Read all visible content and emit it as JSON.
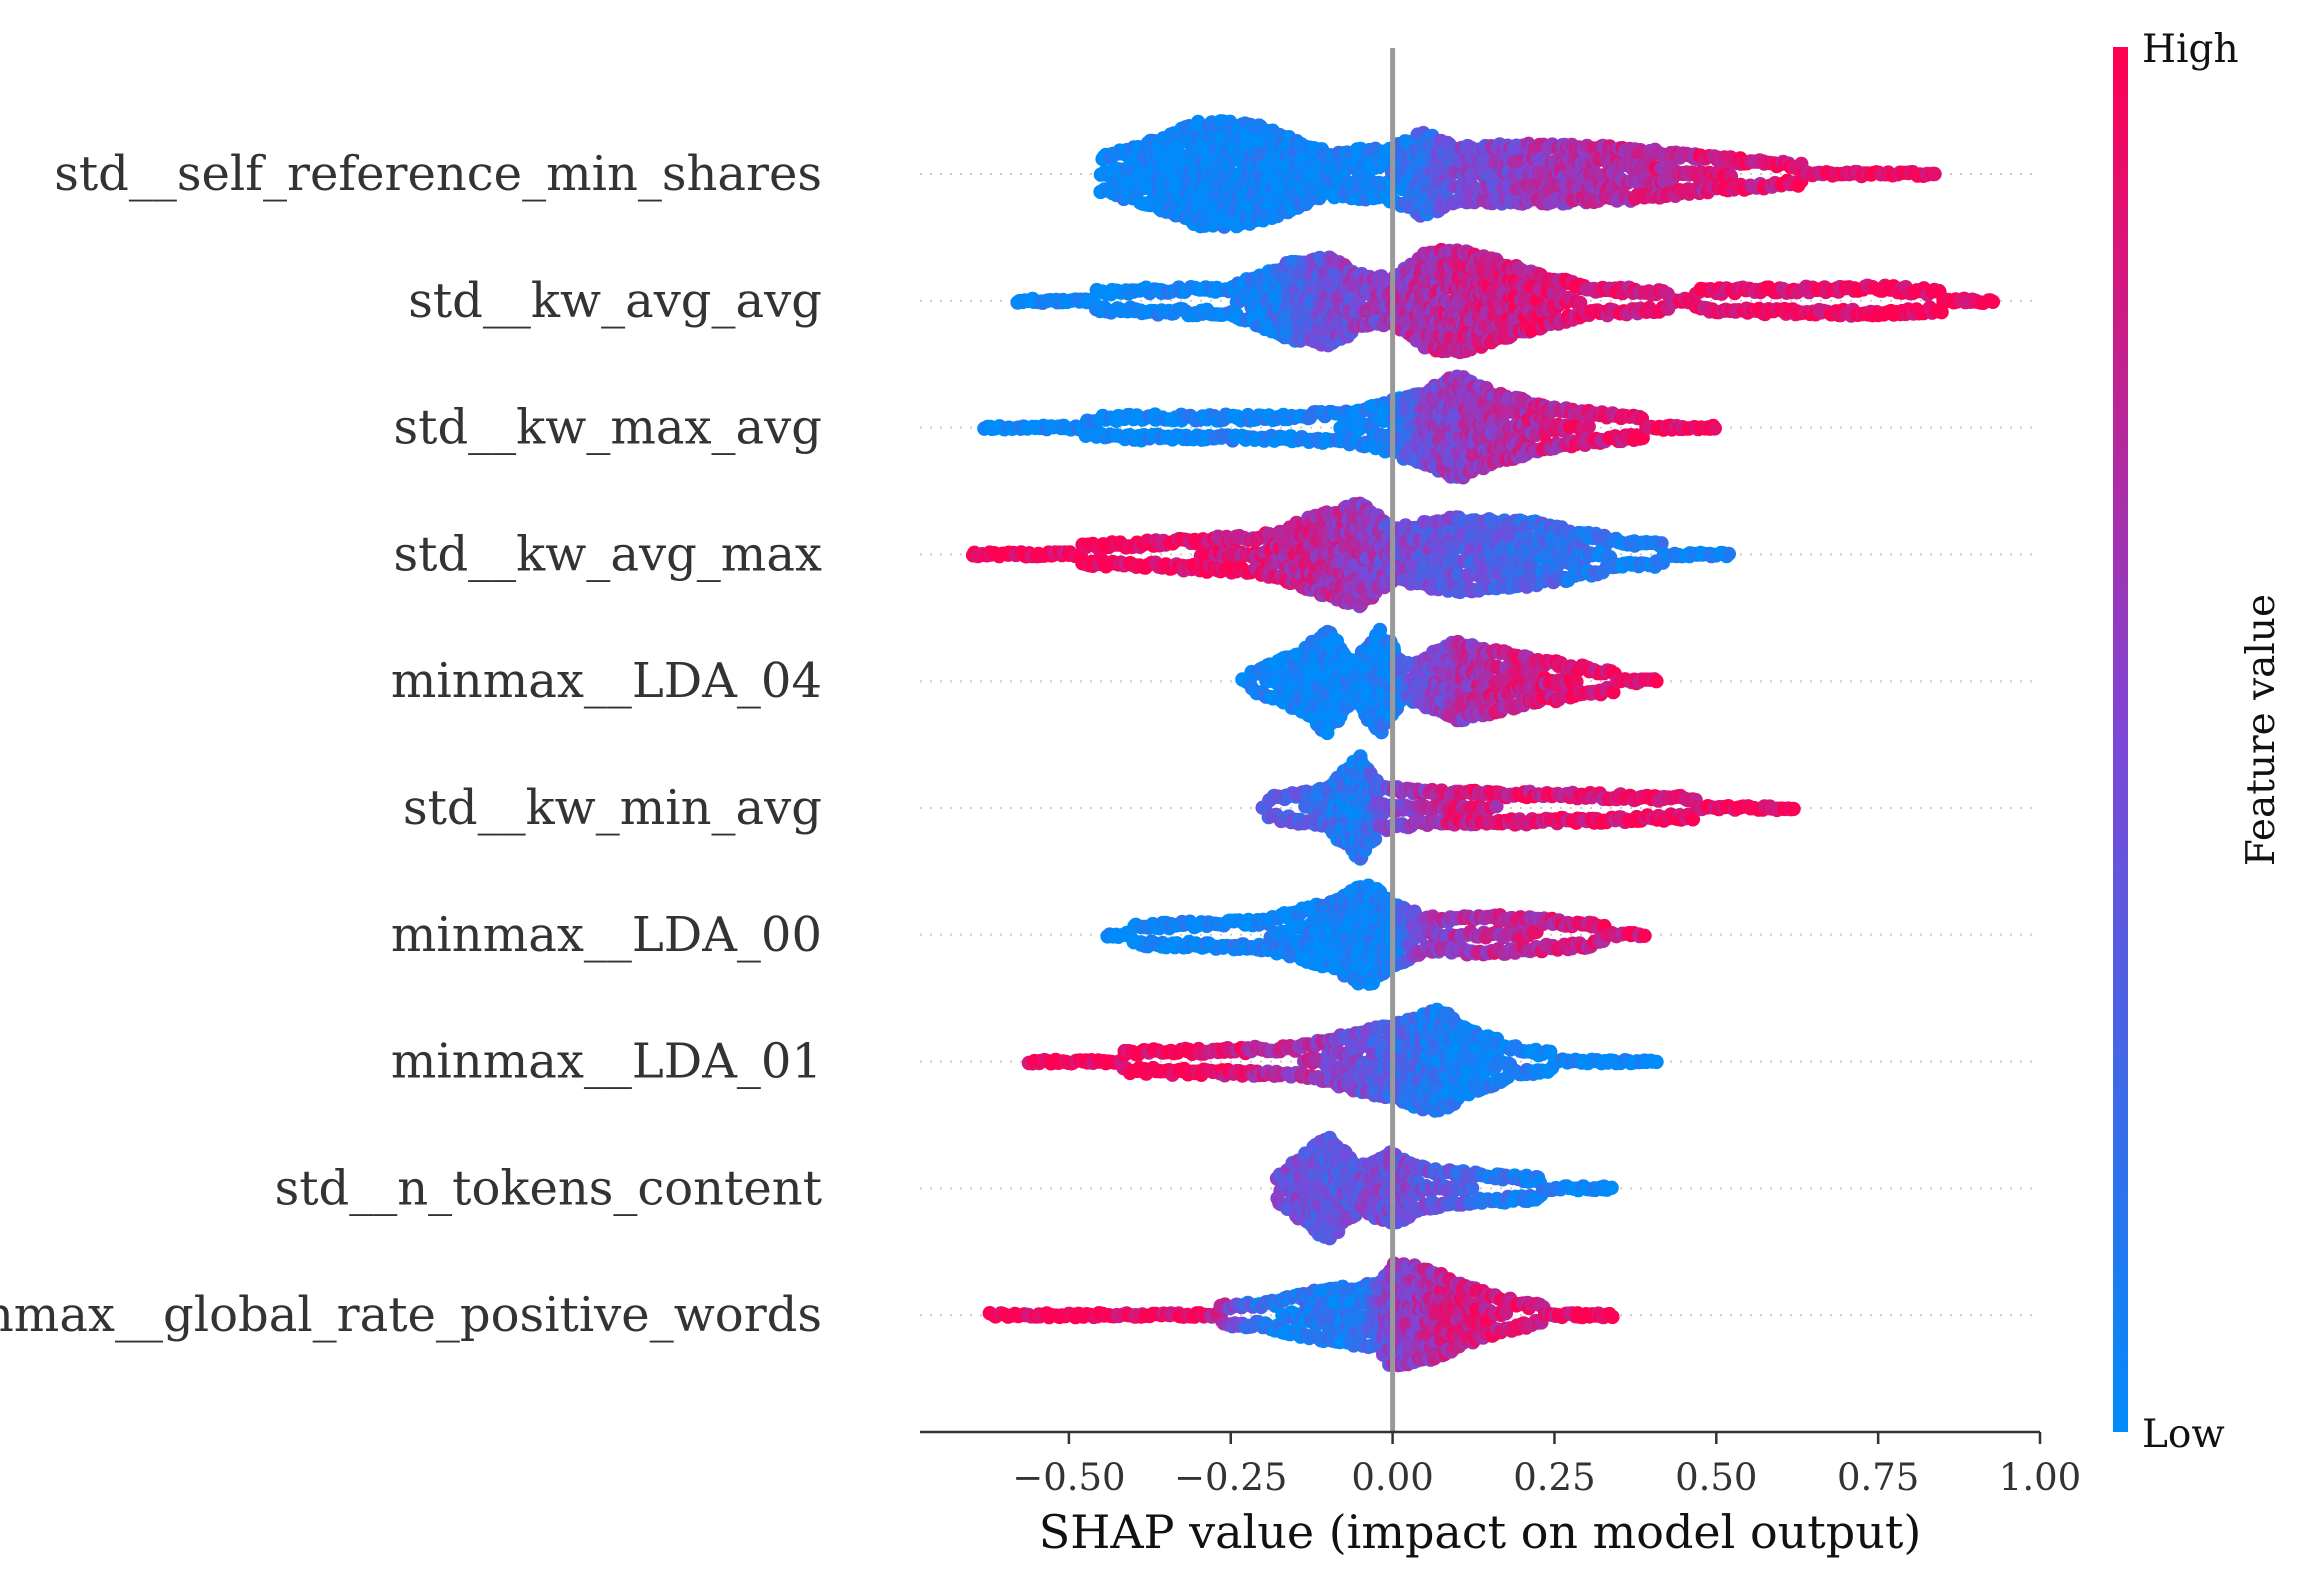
{
  "chart_data": {
    "type": "scatter",
    "subtype": "beeswarm",
    "title": "",
    "xlabel": "SHAP value (impact on model output)",
    "xlim": [
      -0.73,
      1.0
    ],
    "xticks": [
      -0.5,
      -0.25,
      0.0,
      0.25,
      0.5,
      0.75,
      1.0
    ],
    "xtick_labels": [
      "−0.50",
      "−0.25",
      "0.00",
      "0.25",
      "0.50",
      "0.75",
      "1.00"
    ],
    "zero_line": 0.0,
    "grid": false,
    "colorbar": {
      "label": "Feature value",
      "high_label": "High",
      "low_label": "Low",
      "low_color": "#008bfb",
      "high_color": "#ff0052"
    },
    "features": [
      {
        "name": "std__self_reference_min_shares",
        "label": "std__self_reference_min_shares",
        "range": [
          -0.45,
          0.84
        ],
        "density": [
          [
            -0.45,
            0.3
          ],
          [
            -0.35,
            0.7
          ],
          [
            -0.3,
            1.0
          ],
          [
            -0.25,
            1.0
          ],
          [
            -0.2,
            0.9
          ],
          [
            -0.1,
            0.4
          ],
          [
            0.0,
            0.5
          ],
          [
            0.05,
            0.8
          ],
          [
            0.1,
            0.5
          ],
          [
            0.2,
            0.55
          ],
          [
            0.35,
            0.5
          ],
          [
            0.5,
            0.3
          ],
          [
            0.65,
            0.15
          ],
          [
            0.84,
            0.05
          ]
        ],
        "color_profile": [
          [
            -0.45,
            0.0
          ],
          [
            0.0,
            0.05
          ],
          [
            0.1,
            0.45
          ],
          [
            0.3,
            0.7
          ],
          [
            0.5,
            0.85
          ],
          [
            0.84,
            1.0
          ]
        ]
      },
      {
        "name": "std__kw_avg_avg",
        "label": "std__kw_avg_avg",
        "range": [
          -0.58,
          0.93
        ],
        "density": [
          [
            -0.58,
            0.1
          ],
          [
            -0.4,
            0.2
          ],
          [
            -0.25,
            0.25
          ],
          [
            -0.15,
            0.75
          ],
          [
            -0.1,
            0.85
          ],
          [
            -0.05,
            0.5
          ],
          [
            0.0,
            0.4
          ],
          [
            0.05,
            0.9
          ],
          [
            0.1,
            1.0
          ],
          [
            0.2,
            0.6
          ],
          [
            0.3,
            0.25
          ],
          [
            0.45,
            0.15
          ],
          [
            0.5,
            0.2
          ],
          [
            0.75,
            0.25
          ],
          [
            0.93,
            0.1
          ]
        ],
        "color_profile": [
          [
            -0.58,
            0.0
          ],
          [
            -0.2,
            0.05
          ],
          [
            -0.1,
            0.45
          ],
          [
            0.05,
            0.7
          ],
          [
            0.2,
            0.85
          ],
          [
            0.93,
            1.0
          ]
        ]
      },
      {
        "name": "std__kw_max_avg",
        "label": "std__kw_max_avg",
        "range": [
          -0.63,
          0.5
        ],
        "density": [
          [
            -0.63,
            0.1
          ],
          [
            -0.4,
            0.2
          ],
          [
            -0.2,
            0.2
          ],
          [
            -0.05,
            0.3
          ],
          [
            0.05,
            0.7
          ],
          [
            0.1,
            1.0
          ],
          [
            0.15,
            0.7
          ],
          [
            0.25,
            0.35
          ],
          [
            0.4,
            0.15
          ],
          [
            0.5,
            0.05
          ]
        ],
        "color_profile": [
          [
            -0.63,
            0.0
          ],
          [
            0.0,
            0.05
          ],
          [
            0.05,
            0.5
          ],
          [
            0.15,
            0.65
          ],
          [
            0.3,
            0.85
          ],
          [
            0.5,
            1.0
          ]
        ]
      },
      {
        "name": "std__kw_avg_max",
        "label": "std__kw_avg_max",
        "range": [
          -0.65,
          0.52
        ],
        "density": [
          [
            -0.65,
            0.1
          ],
          [
            -0.4,
            0.2
          ],
          [
            -0.2,
            0.35
          ],
          [
            -0.1,
            0.8
          ],
          [
            -0.05,
            1.0
          ],
          [
            0.0,
            0.5
          ],
          [
            0.1,
            0.7
          ],
          [
            0.22,
            0.6
          ],
          [
            0.35,
            0.25
          ],
          [
            0.52,
            0.05
          ]
        ],
        "color_profile": [
          [
            -0.65,
            1.0
          ],
          [
            -0.3,
            0.95
          ],
          [
            -0.1,
            0.7
          ],
          [
            0.0,
            0.5
          ],
          [
            0.15,
            0.35
          ],
          [
            0.3,
            0.15
          ],
          [
            0.52,
            0.0
          ]
        ]
      },
      {
        "name": "minmax__LDA_04",
        "label": "minmax__LDA_04",
        "range": [
          -0.23,
          0.41
        ],
        "density": [
          [
            -0.23,
            0.1
          ],
          [
            -0.15,
            0.5
          ],
          [
            -0.1,
            1.0
          ],
          [
            -0.06,
            0.3
          ],
          [
            -0.02,
            1.0
          ],
          [
            0.02,
            0.3
          ],
          [
            0.1,
            0.75
          ],
          [
            0.2,
            0.45
          ],
          [
            0.35,
            0.15
          ],
          [
            0.41,
            0.05
          ]
        ],
        "color_profile": [
          [
            -0.23,
            0.0
          ],
          [
            0.0,
            0.05
          ],
          [
            0.05,
            0.5
          ],
          [
            0.15,
            0.75
          ],
          [
            0.41,
            1.0
          ]
        ]
      },
      {
        "name": "std__kw_min_avg",
        "label": "std__kw_min_avg",
        "range": [
          -0.2,
          0.62
        ],
        "density": [
          [
            -0.2,
            0.15
          ],
          [
            -0.1,
            0.35
          ],
          [
            -0.05,
            1.0
          ],
          [
            -0.02,
            0.4
          ],
          [
            0.05,
            0.3
          ],
          [
            0.3,
            0.25
          ],
          [
            0.5,
            0.15
          ],
          [
            0.62,
            0.05
          ]
        ],
        "color_profile": [
          [
            -0.2,
            0.45
          ],
          [
            -0.05,
            0.1
          ],
          [
            0.0,
            0.5
          ],
          [
            0.1,
            0.8
          ],
          [
            0.62,
            1.0
          ]
        ]
      },
      {
        "name": "minmax__LDA_00",
        "label": "minmax__LDA_00",
        "range": [
          -0.44,
          0.39
        ],
        "density": [
          [
            -0.44,
            0.15
          ],
          [
            -0.2,
            0.25
          ],
          [
            -0.1,
            0.6
          ],
          [
            -0.04,
            1.0
          ],
          [
            0.0,
            0.6
          ],
          [
            0.05,
            0.3
          ],
          [
            0.15,
            0.35
          ],
          [
            0.25,
            0.25
          ],
          [
            0.39,
            0.1
          ]
        ],
        "color_profile": [
          [
            -0.44,
            0.0
          ],
          [
            0.0,
            0.05
          ],
          [
            0.05,
            0.6
          ],
          [
            0.2,
            0.75
          ],
          [
            0.39,
            0.9
          ]
        ]
      },
      {
        "name": "minmax__LDA_01",
        "label": "minmax__LDA_01",
        "range": [
          -0.56,
          0.41
        ],
        "density": [
          [
            -0.56,
            0.1
          ],
          [
            -0.35,
            0.2
          ],
          [
            -0.15,
            0.25
          ],
          [
            -0.05,
            0.55
          ],
          [
            0.0,
            0.7
          ],
          [
            0.07,
            1.0
          ],
          [
            0.12,
            0.6
          ],
          [
            0.2,
            0.2
          ],
          [
            0.41,
            0.05
          ]
        ],
        "color_profile": [
          [
            -0.56,
            1.0
          ],
          [
            -0.3,
            0.95
          ],
          [
            -0.1,
            0.6
          ],
          [
            0.0,
            0.3
          ],
          [
            0.1,
            0.05
          ],
          [
            0.41,
            0.0
          ]
        ]
      },
      {
        "name": "std__n_tokens_content",
        "label": "std__n_tokens_content",
        "range": [
          -0.18,
          0.34
        ],
        "density": [
          [
            -0.18,
            0.2
          ],
          [
            -0.1,
            1.0
          ],
          [
            -0.05,
            0.4
          ],
          [
            0.0,
            0.7
          ],
          [
            0.05,
            0.35
          ],
          [
            0.15,
            0.25
          ],
          [
            0.25,
            0.15
          ],
          [
            0.34,
            0.05
          ]
        ],
        "color_profile": [
          [
            -0.18,
            0.5
          ],
          [
            -0.1,
            0.35
          ],
          [
            0.0,
            0.5
          ],
          [
            0.1,
            0.3
          ],
          [
            0.2,
            0.1
          ],
          [
            0.34,
            0.0
          ]
        ]
      },
      {
        "name": "minmax__global_rate_positive_words",
        "label": "minmax__global_rate_positive_words",
        "range": [
          -0.62,
          0.34
        ],
        "density": [
          [
            -0.62,
            0.1
          ],
          [
            -0.4,
            0.1
          ],
          [
            -0.2,
            0.2
          ],
          [
            -0.1,
            0.5
          ],
          [
            -0.02,
            0.6
          ],
          [
            0.0,
            1.0
          ],
          [
            0.05,
            0.9
          ],
          [
            0.12,
            0.5
          ],
          [
            0.2,
            0.2
          ],
          [
            0.34,
            0.05
          ]
        ],
        "color_profile": [
          [
            -0.62,
            1.0
          ],
          [
            -0.3,
            0.95
          ],
          [
            -0.2,
            0.1
          ],
          [
            -0.05,
            0.15
          ],
          [
            0.0,
            0.55
          ],
          [
            0.1,
            0.8
          ],
          [
            0.34,
            1.0
          ]
        ]
      }
    ]
  }
}
